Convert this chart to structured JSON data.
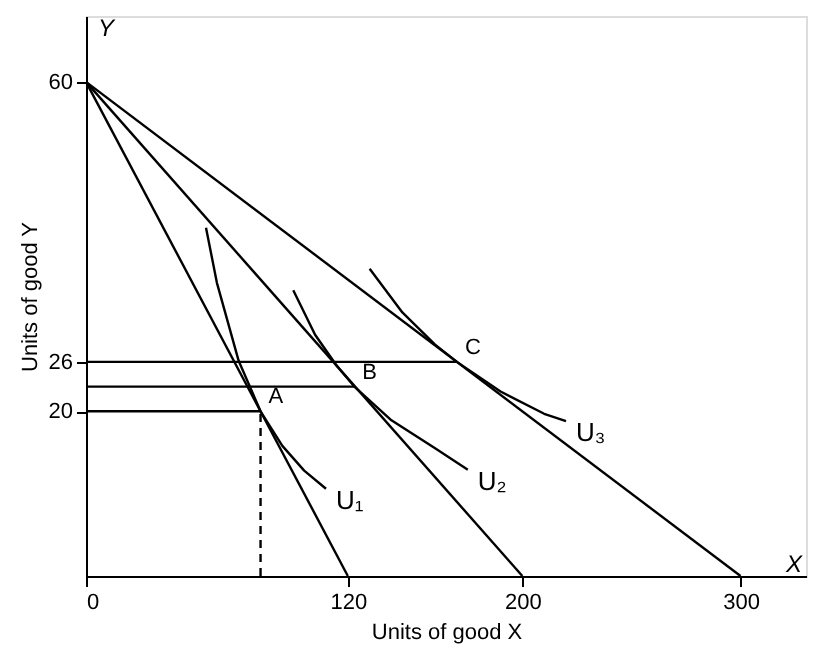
{
  "chart_data": {
    "type": "line",
    "xlabel": "Units of good X",
    "ylabel": "Units of good Y",
    "xlim": [
      0,
      330
    ],
    "ylim": [
      0,
      68
    ],
    "xticks": [
      0,
      120,
      200,
      300
    ],
    "yticks": [
      20,
      26,
      60
    ],
    "grid": false,
    "line_style": "solid",
    "marker": "none",
    "series": [
      {
        "color": "#000000",
        "x": [
          0,
          120
        ],
        "values": [
          60,
          0
        ]
      },
      {
        "color": "#000000",
        "x": [
          0,
          200
        ],
        "values": [
          60,
          0
        ]
      },
      {
        "color": "#000000",
        "x": [
          0,
          300
        ],
        "values": [
          60,
          0
        ]
      },
      {
        "name": "U₁",
        "color": "#000000",
        "x": [
          55,
          60,
          70,
          80,
          90,
          100,
          110
        ],
        "values": [
          42.3,
          35.6,
          26.1,
          20,
          15.8,
          12.8,
          10.6
        ]
      },
      {
        "name": "U₂",
        "color": "#000000",
        "x": [
          95,
          105,
          115,
          123,
          140,
          160,
          175
        ],
        "values": [
          34.7,
          29.3,
          25.5,
          23,
          18.9,
          15.5,
          12.9
        ]
      },
      {
        "name": "U₃",
        "color": "#000000",
        "x": [
          130,
          145,
          160,
          170,
          190,
          210,
          220
        ],
        "values": [
          37.3,
          32.0,
          28.1,
          26,
          22.4,
          19.7,
          18.8
        ]
      },
      {
        "color": "#000000",
        "x": [
          0,
          80
        ],
        "values": [
          20,
          20
        ]
      },
      {
        "color": "#000000",
        "x": [
          0,
          123
        ],
        "values": [
          23,
          23
        ]
      },
      {
        "color": "#000000",
        "x": [
          0,
          170
        ],
        "values": [
          26,
          26
        ]
      },
      {
        "color": "#000000",
        "x": [
          80,
          80
        ],
        "values": [
          0,
          20
        ],
        "line_style": "dashed"
      }
    ],
    "annotations": [
      "X",
      "Y",
      {
        "text": "A",
        "x": 80,
        "y": 20
      },
      {
        "text": "B",
        "x": 123,
        "y": 23
      },
      {
        "text": "C",
        "x": 170,
        "y": 26
      }
    ]
  }
}
